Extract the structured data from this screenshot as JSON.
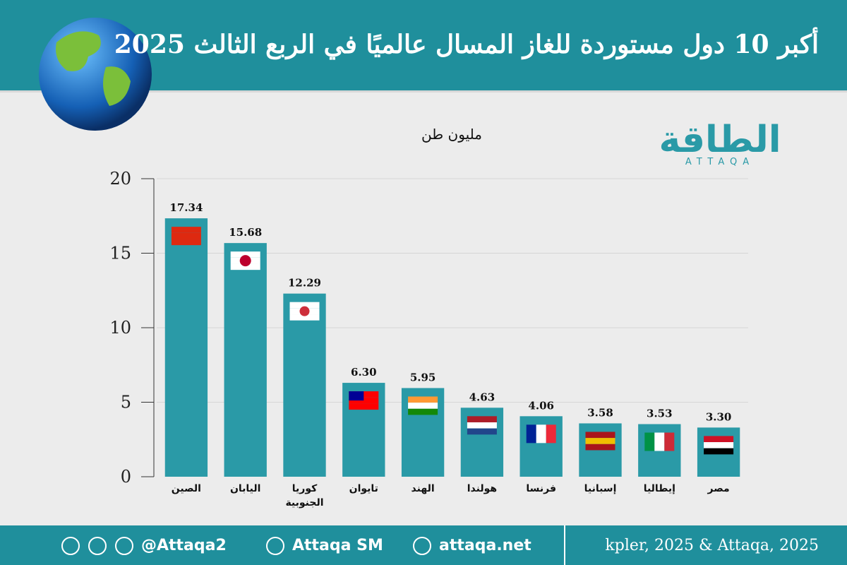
{
  "chart_data": {
    "type": "bar",
    "title": "أكبر 10 دول مستوردة للغاز المسال عالميًا في الربع الثالث 2025",
    "y_label": "مليون طن",
    "categories": [
      "الصين",
      "اليابان",
      "كوريا الجنوبية",
      "تايوان",
      "الهند",
      "هولندا",
      "فرنسا",
      "إسبانيا",
      "إيطاليا",
      "مصر"
    ],
    "values": [
      17.34,
      15.68,
      12.29,
      6.3,
      5.95,
      4.63,
      4.06,
      3.58,
      3.53,
      3.3
    ],
    "value_labels": [
      "17.34",
      "15.68",
      "12.29",
      "6.30",
      "5.95",
      "4.63",
      "4.06",
      "3.58",
      "3.53",
      "3.30"
    ],
    "color": "#2a9aa7",
    "ylim": [
      0,
      20
    ],
    "yticks": [
      0,
      5,
      10,
      15,
      20
    ],
    "grid": true
  },
  "logo": {
    "arabic": "الطاقة",
    "latin": "ATTAQA"
  },
  "footer": {
    "handle": "@Attaqa2",
    "youtube": "Attaqa SM",
    "website": "attaqa.net",
    "source": "kpler, 2025 & Attaqa, 2025"
  }
}
